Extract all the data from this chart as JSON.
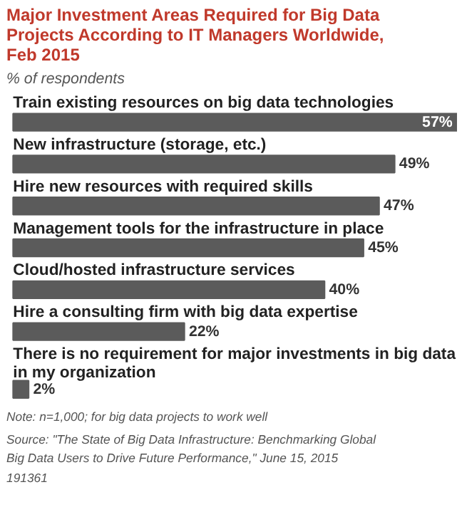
{
  "chart_data": {
    "type": "bar",
    "orientation": "horizontal",
    "title": "Major Investment Areas Required for Big Data Projects According to IT Managers Worldwide, Feb 2015",
    "subtitle": "% of respondents",
    "categories": [
      "Train existing resources on big data technologies",
      "New infrastructure (storage, etc.)",
      "Hire new resources with required skills",
      "Management tools for the infrastructure in place",
      "Cloud/hosted infrastructure services",
      "Hire a consulting firm with big data expertise",
      "There is no requirement for major investments in big data in my organization"
    ],
    "values": [
      57,
      49,
      47,
      45,
      40,
      22,
      2
    ],
    "value_labels": [
      "57%",
      "49%",
      "47%",
      "45%",
      "40%",
      "22%",
      "2%"
    ],
    "color": "#5b5b5b",
    "annotations": [
      "Note: n=1,000; for big data projects to work well",
      "Source: \"The State of Big Data Infrastructure: Benchmarking Global Big Data Users to Drive Future Performance,\" June 15, 2015",
      "191361"
    ]
  }
}
